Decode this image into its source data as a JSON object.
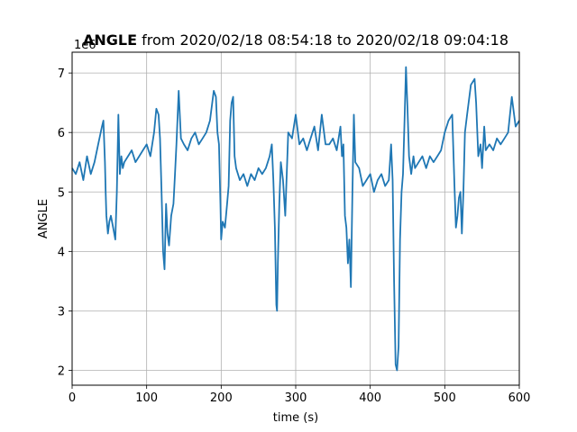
{
  "chart_data": {
    "type": "line",
    "title_bold": "ANGLE",
    "title_rest": " from 2020/02/18 08:54:18 to 2020/02/18 09:04:18",
    "xlabel": "time (s)",
    "ylabel": "ANGLE",
    "offset_text": "1e6",
    "xlim": [
      0,
      600
    ],
    "ylim": [
      1.75,
      7.35
    ],
    "xticks": [
      0,
      100,
      200,
      300,
      400,
      500,
      600
    ],
    "yticks": [
      2,
      3,
      4,
      5,
      6,
      7
    ],
    "grid": true,
    "line_color": "#1f77b4",
    "series": [
      {
        "x": [
          0,
          5,
          10,
          15,
          20,
          25,
          30,
          35,
          40,
          42,
          44,
          45,
          46,
          48,
          50,
          52,
          55,
          58,
          60,
          62,
          64,
          66,
          68,
          70,
          75,
          80,
          85,
          90,
          95,
          100,
          105,
          110,
          113,
          116,
          118,
          120,
          122,
          124,
          126,
          128,
          130,
          133,
          136,
          138,
          140,
          143,
          146,
          150,
          155,
          160,
          165,
          170,
          175,
          180,
          185,
          190,
          193,
          195,
          197,
          199,
          200,
          202,
          205,
          208,
          210,
          212,
          214,
          216,
          218,
          220,
          225,
          230,
          235,
          240,
          245,
          250,
          255,
          260,
          265,
          268,
          270,
          272,
          274,
          275,
          276,
          278,
          280,
          283,
          286,
          290,
          295,
          300,
          305,
          310,
          315,
          320,
          325,
          330,
          335,
          340,
          345,
          350,
          355,
          360,
          362,
          364,
          366,
          368,
          370,
          372,
          374,
          376,
          378,
          380,
          385,
          390,
          395,
          400,
          405,
          410,
          415,
          420,
          425,
          428,
          430,
          432,
          434,
          436,
          438,
          440,
          442,
          444,
          446,
          448,
          450,
          452,
          455,
          458,
          460,
          465,
          470,
          475,
          480,
          485,
          490,
          495,
          500,
          505,
          510,
          513,
          515,
          517,
          519,
          521,
          523,
          525,
          527,
          530,
          535,
          540,
          542,
          545,
          548,
          550,
          553,
          555,
          560,
          565,
          570,
          575,
          580,
          585,
          590,
          595,
          600
        ],
        "values": [
          5.4,
          5.3,
          5.5,
          5.2,
          5.6,
          5.3,
          5.5,
          5.8,
          6.1,
          6.2,
          5.5,
          5.0,
          4.6,
          4.3,
          4.5,
          4.6,
          4.4,
          4.2,
          5.0,
          6.3,
          5.3,
          5.6,
          5.4,
          5.5,
          5.6,
          5.7,
          5.5,
          5.6,
          5.7,
          5.8,
          5.6,
          6.0,
          6.4,
          6.3,
          5.9,
          5.0,
          4.0,
          3.7,
          4.8,
          4.3,
          4.1,
          4.6,
          4.8,
          5.3,
          5.8,
          6.7,
          5.9,
          5.8,
          5.7,
          5.9,
          6.0,
          5.8,
          5.9,
          6.0,
          6.2,
          6.7,
          6.6,
          6.0,
          5.8,
          4.8,
          4.2,
          4.5,
          4.4,
          4.8,
          5.1,
          6.2,
          6.5,
          6.6,
          5.6,
          5.4,
          5.2,
          5.3,
          5.1,
          5.3,
          5.2,
          5.4,
          5.3,
          5.4,
          5.6,
          5.8,
          5.2,
          4.4,
          3.1,
          3.0,
          3.8,
          4.8,
          5.5,
          5.2,
          4.6,
          6.0,
          5.9,
          6.3,
          5.8,
          5.9,
          5.7,
          5.9,
          6.1,
          5.7,
          6.3,
          5.8,
          5.8,
          5.9,
          5.7,
          6.1,
          5.6,
          5.8,
          4.6,
          4.4,
          3.8,
          4.2,
          3.4,
          4.9,
          6.3,
          5.5,
          5.4,
          5.1,
          5.2,
          5.3,
          5.0,
          5.2,
          5.3,
          5.1,
          5.2,
          5.8,
          5.2,
          3.5,
          2.1,
          2.0,
          2.4,
          4.2,
          5.0,
          5.3,
          6.2,
          7.1,
          6.4,
          5.6,
          5.3,
          5.6,
          5.4,
          5.5,
          5.6,
          5.4,
          5.6,
          5.5,
          5.6,
          5.7,
          6.0,
          6.2,
          6.3,
          5.1,
          4.4,
          4.6,
          4.9,
          5.0,
          4.3,
          5.0,
          6.0,
          6.3,
          6.8,
          6.9,
          6.5,
          5.6,
          5.8,
          5.4,
          6.1,
          5.7,
          5.8,
          5.7,
          5.9,
          5.8,
          5.9,
          6.0,
          6.6,
          6.1,
          6.2
        ]
      }
    ]
  }
}
